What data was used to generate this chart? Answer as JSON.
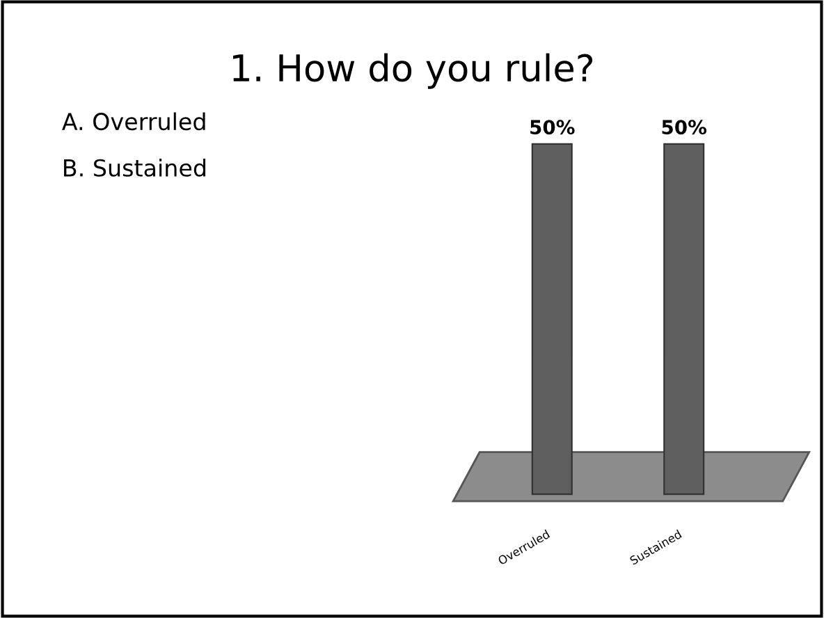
{
  "chart_data": {
    "type": "bar",
    "title": "1. How do you rule?",
    "annotations": [
      "A. Overruled",
      "B. Sustained"
    ],
    "categories": [
      "Overruled",
      "Sustained"
    ],
    "values": [
      50,
      50
    ],
    "value_labels": [
      "50%",
      "50%"
    ],
    "color": "#5f5f5f",
    "grid": false,
    "legend": false
  }
}
